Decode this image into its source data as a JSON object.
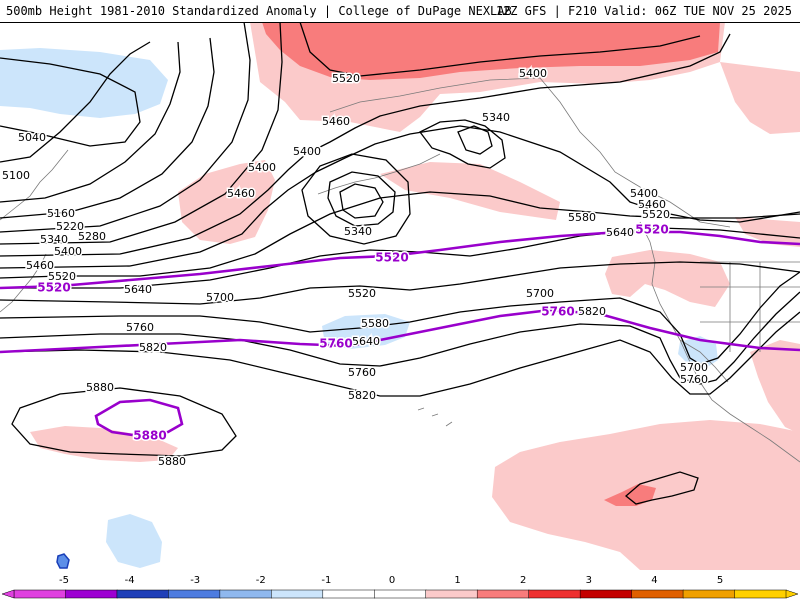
{
  "header": {
    "left_title": "500mb Height 1981-2010 Standardized Anomaly | College of DuPage NEXLAB",
    "right_title": "12Z GFS | F210 Valid: 06Z TUE NOV 25 2025"
  },
  "colors": {
    "anom_pos_1": "#fbcaca",
    "anom_pos_2": "#f87c7c",
    "anom_pos_3": "#c40000",
    "anom_neg_1": "#cce5fb",
    "anom_neg_2": "#5d8fe8",
    "anom_neg_3": "#1a3fb8",
    "height_contour": "#000000",
    "highlight_contour": "#9900cc",
    "land_outline": "#7a7a7a"
  },
  "map_labels": {
    "black": [
      {
        "text": "5520",
        "name": "contour-label-5520-north"
      },
      {
        "text": "5400",
        "name": "contour-label-5400-alaska"
      },
      {
        "text": "5340",
        "name": "contour-label-5340-alaska"
      },
      {
        "text": "5460",
        "name": "contour-label-5460-bering"
      },
      {
        "text": "5400",
        "name": "contour-label-5400-bering"
      },
      {
        "text": "5040",
        "name": "contour-label-5040"
      },
      {
        "text": "5100",
        "name": "contour-label-5100"
      },
      {
        "text": "5400",
        "name": "contour-label-5400-low"
      },
      {
        "text": "5460",
        "name": "contour-label-5460-low"
      },
      {
        "text": "5340",
        "name": "contour-label-5340-low"
      },
      {
        "text": "5160",
        "name": "contour-label-5160"
      },
      {
        "text": "5220",
        "name": "contour-label-5220"
      },
      {
        "text": "5280",
        "name": "contour-label-5280"
      },
      {
        "text": "5340",
        "name": "contour-label-5340-west"
      },
      {
        "text": "5400",
        "name": "contour-label-5400-west"
      },
      {
        "text": "5460",
        "name": "contour-label-5460-west"
      },
      {
        "text": "5520",
        "name": "contour-label-5520-west"
      },
      {
        "text": "5640",
        "name": "contour-label-5640-west"
      },
      {
        "text": "5700",
        "name": "contour-label-5700-center"
      },
      {
        "text": "5760",
        "name": "contour-label-5760-west"
      },
      {
        "text": "5820",
        "name": "contour-label-5820-west"
      },
      {
        "text": "5520",
        "name": "contour-label-5520-center"
      },
      {
        "text": "5580",
        "name": "contour-label-5580-center"
      },
      {
        "text": "5640",
        "name": "contour-label-5640-center"
      },
      {
        "text": "5760",
        "name": "contour-label-5760-center"
      },
      {
        "text": "5820",
        "name": "contour-label-5820-center"
      },
      {
        "text": "5580",
        "name": "contour-label-5580-east"
      },
      {
        "text": "5640",
        "name": "contour-label-5640-east"
      },
      {
        "text": "5700",
        "name": "contour-label-5700-east"
      },
      {
        "text": "5820",
        "name": "contour-label-5820-east"
      },
      {
        "text": "5400",
        "name": "contour-label-5400-coast"
      },
      {
        "text": "5460",
        "name": "contour-label-5460-coast"
      },
      {
        "text": "5520",
        "name": "contour-label-5520-coast"
      },
      {
        "text": "5700",
        "name": "contour-label-5700-calif"
      },
      {
        "text": "5760",
        "name": "contour-label-5760-calif"
      },
      {
        "text": "5880",
        "name": "contour-label-5880-top"
      },
      {
        "text": "5880",
        "name": "contour-label-5880-bottom"
      }
    ],
    "purple": [
      {
        "text": "5520",
        "name": "highlight-label-5520-west"
      },
      {
        "text": "5520",
        "name": "highlight-label-5520-center"
      },
      {
        "text": "5520",
        "name": "highlight-label-5520-east"
      },
      {
        "text": "5760",
        "name": "highlight-label-5760-west"
      },
      {
        "text": "5760",
        "name": "highlight-label-5760-center"
      },
      {
        "text": "5880",
        "name": "highlight-label-5880"
      }
    ]
  },
  "legend": {
    "ticks": [
      "-5",
      "-4",
      "-3",
      "-2",
      "-1",
      "0",
      "1",
      "2",
      "3",
      "4",
      "5"
    ],
    "colors": [
      "#e040e0",
      "#9d00d2",
      "#1f3fb8",
      "#4d7ce0",
      "#8fb8ee",
      "#cce5fb",
      "#ffffff",
      "#ffffff",
      "#fbcaca",
      "#f87c7c",
      "#ee3030",
      "#c40000",
      "#e06000",
      "#f0a000",
      "#ffd000"
    ]
  }
}
